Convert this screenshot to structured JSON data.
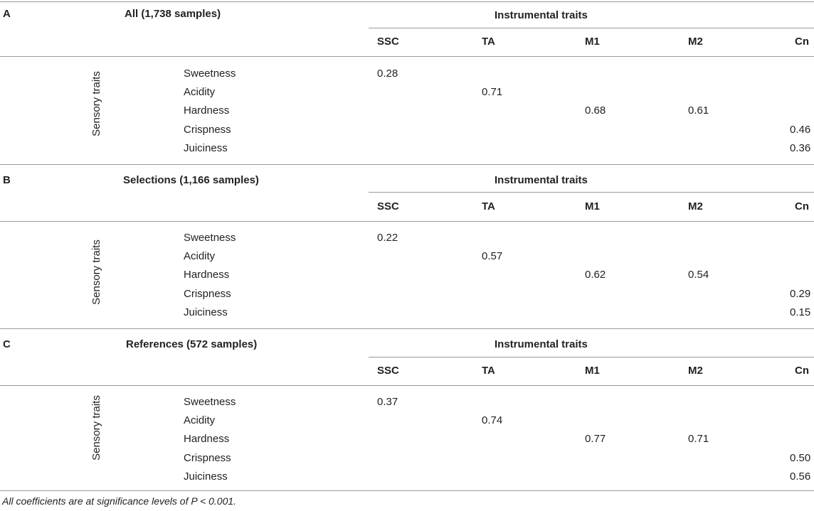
{
  "sections": [
    {
      "letter": "A",
      "title": "All (1,738 samples)",
      "group_header": "Instrumental traits",
      "columns": [
        "SSC",
        "TA",
        "M1",
        "M2",
        "Cn"
      ],
      "row_group_label": "Sensory traits",
      "rows": [
        {
          "label": "Sweetness",
          "values": [
            "0.28",
            "",
            "",
            "",
            ""
          ]
        },
        {
          "label": "Acidity",
          "values": [
            "",
            "0.71",
            "",
            "",
            ""
          ]
        },
        {
          "label": "Hardness",
          "values": [
            "",
            "",
            "0.68",
            "0.61",
            ""
          ]
        },
        {
          "label": "Crispness",
          "values": [
            "",
            "",
            "",
            "",
            "0.46"
          ]
        },
        {
          "label": "Juiciness",
          "values": [
            "",
            "",
            "",
            "",
            "0.36"
          ]
        }
      ]
    },
    {
      "letter": "B",
      "title": "Selections (1,166 samples)",
      "group_header": "Instrumental traits",
      "columns": [
        "SSC",
        "TA",
        "M1",
        "M2",
        "Cn"
      ],
      "row_group_label": "Sensory traits",
      "rows": [
        {
          "label": "Sweetness",
          "values": [
            "0.22",
            "",
            "",
            "",
            ""
          ]
        },
        {
          "label": "Acidity",
          "values": [
            "",
            "0.57",
            "",
            "",
            ""
          ]
        },
        {
          "label": "Hardness",
          "values": [
            "",
            "",
            "0.62",
            "0.54",
            ""
          ]
        },
        {
          "label": "Crispness",
          "values": [
            "",
            "",
            "",
            "",
            "0.29"
          ]
        },
        {
          "label": "Juiciness",
          "values": [
            "",
            "",
            "",
            "",
            "0.15"
          ]
        }
      ]
    },
    {
      "letter": "C",
      "title": "References (572 samples)",
      "group_header": "Instrumental traits",
      "columns": [
        "SSC",
        "TA",
        "M1",
        "M2",
        "Cn"
      ],
      "row_group_label": "Sensory traits",
      "rows": [
        {
          "label": "Sweetness",
          "values": [
            "0.37",
            "",
            "",
            "",
            ""
          ]
        },
        {
          "label": "Acidity",
          "values": [
            "",
            "0.74",
            "",
            "",
            ""
          ]
        },
        {
          "label": "Hardness",
          "values": [
            "",
            "",
            "0.77",
            "0.71",
            ""
          ]
        },
        {
          "label": "Crispness",
          "values": [
            "",
            "",
            "",
            "",
            "0.50"
          ]
        },
        {
          "label": "Juiciness",
          "values": [
            "",
            "",
            "",
            "",
            "0.56"
          ]
        }
      ]
    }
  ],
  "footnote": "All coefficients are at significance levels of P < 0.001."
}
